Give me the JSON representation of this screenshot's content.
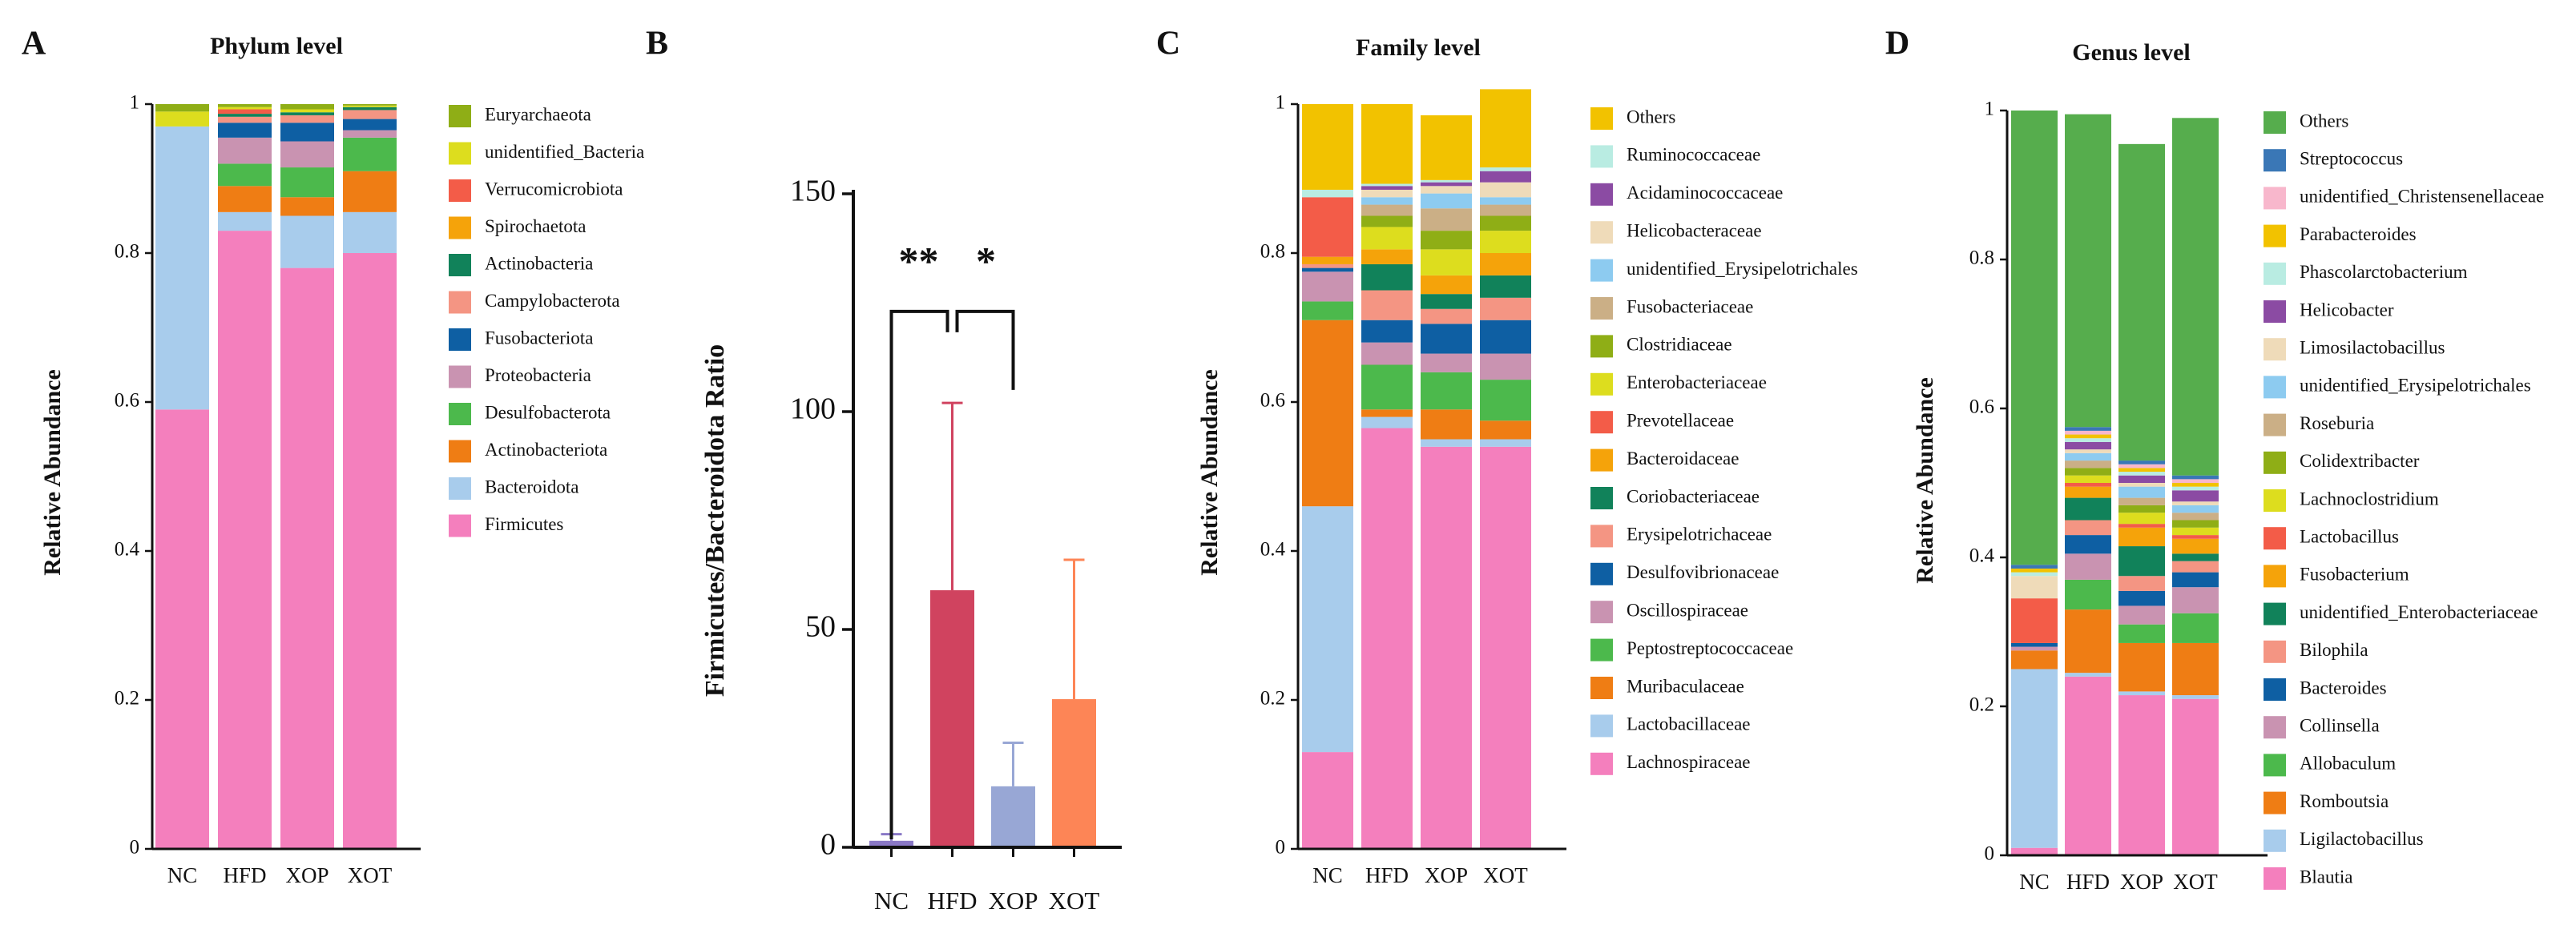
{
  "chart_data": [
    {
      "panel_label": "A",
      "type": "bar",
      "stacked": true,
      "title": "Phylum level",
      "xlabel": "",
      "ylabel": "Relative Abundance",
      "ylim": [
        0,
        1
      ],
      "yticks": [
        "0",
        "0.2",
        "0.4",
        "0.6",
        "0.8",
        "1"
      ],
      "categories": [
        "NC",
        "HFD",
        "XOP",
        "XOT"
      ],
      "legend": [
        "Euryarchaeota",
        "unidentified_Bacteria",
        "Verrucomicrobiota",
        "Spirochaetota",
        "Actinobacteria",
        "Campylobacterota",
        "Fusobacteriota",
        "Proteobacteria",
        "Desulfobacterota",
        "Actinobacteriota",
        "Bacteroidota",
        "Firmicutes"
      ],
      "series": [
        {
          "name": "Firmicutes",
          "color": "#f47fbd",
          "values": [
            0.59,
            0.83,
            0.78,
            0.8
          ]
        },
        {
          "name": "Bacteroidota",
          "color": "#a8ccec",
          "values": [
            0.38,
            0.025,
            0.07,
            0.055
          ]
        },
        {
          "name": "Actinobacteriota",
          "color": "#ef7d14",
          "values": [
            0.0,
            0.035,
            0.025,
            0.055
          ]
        },
        {
          "name": "Desulfobacterota",
          "color": "#4cb94c",
          "values": [
            0.0,
            0.03,
            0.04,
            0.045
          ]
        },
        {
          "name": "Proteobacteria",
          "color": "#c993b1",
          "values": [
            0.0,
            0.035,
            0.035,
            0.01
          ]
        },
        {
          "name": "Fusobacteriota",
          "color": "#0e5fa3",
          "values": [
            0.0,
            0.02,
            0.025,
            0.015
          ]
        },
        {
          "name": "Campylobacterota",
          "color": "#f49583",
          "values": [
            0.0,
            0.008,
            0.01,
            0.012
          ]
        },
        {
          "name": "Actinobacteria",
          "color": "#11825a",
          "values": [
            0.0,
            0.004,
            0.004,
            0.004
          ]
        },
        {
          "name": "Spirochaetota",
          "color": "#f5a30a",
          "values": [
            0.0,
            0.0,
            0.0,
            0.0
          ]
        },
        {
          "name": "Verrucomicrobiota",
          "color": "#f35c48",
          "values": [
            0.0,
            0.006,
            0.0,
            0.0
          ]
        },
        {
          "name": "unidentified_Bacteria",
          "color": "#dddd1e",
          "values": [
            0.02,
            0.003,
            0.004,
            0.002
          ]
        },
        {
          "name": "Euryarchaeota",
          "color": "#8fae16",
          "values": [
            0.01,
            0.004,
            0.007,
            0.002
          ]
        }
      ]
    },
    {
      "panel_label": "B",
      "type": "bar",
      "title": "",
      "xlabel": "",
      "ylabel": "Firmicutes/Bacteroidota Ratio",
      "ylim": [
        0,
        150
      ],
      "yticks": [
        "0",
        "50",
        "100",
        "150"
      ],
      "categories": [
        "NC",
        "HFD",
        "XOP",
        "XOT"
      ],
      "values": [
        1.5,
        59,
        14,
        34
      ],
      "error": [
        1.5,
        43,
        10,
        32
      ],
      "colors": [
        "#8a78c6",
        "#d0435f",
        "#98a7d5",
        "#fd8556"
      ],
      "annotations": [
        "**",
        "*"
      ]
    },
    {
      "panel_label": "C",
      "type": "bar",
      "stacked": true,
      "title": "Family level",
      "xlabel": "",
      "ylabel": "Relative Abundance",
      "ylim": [
        0,
        1
      ],
      "yticks": [
        "0",
        "0.2",
        "0.4",
        "0.6",
        "0.8",
        "1"
      ],
      "categories": [
        "NC",
        "HFD",
        "XOP",
        "XOT"
      ],
      "legend": [
        "Others",
        "Ruminococcaceae",
        "Acidaminococcaceae",
        "Helicobacteraceae",
        "unidentified_Erysipelotrichales",
        "Fusobacteriaceae",
        "Clostridiaceae",
        "Enterobacteriaceae",
        "Prevotellaceae",
        "Bacteroidaceae",
        "Coriobacteriaceae",
        "Erysipelotrichaceae",
        "Desulfovibrionaceae",
        "Oscillospiraceae",
        "Peptostreptococcaceae",
        "Muribaculaceae",
        "Lactobacillaceae",
        "Lachnospiraceae"
      ],
      "series": [
        {
          "name": "Lachnospiraceae",
          "color": "#f47fbd",
          "values": [
            0.13,
            0.565,
            0.54,
            0.54
          ]
        },
        {
          "name": "Lactobacillaceae",
          "color": "#a8ccec",
          "values": [
            0.33,
            0.015,
            0.01,
            0.01
          ]
        },
        {
          "name": "Muribaculaceae",
          "color": "#ef7d14",
          "values": [
            0.25,
            0.01,
            0.04,
            0.025
          ]
        },
        {
          "name": "Peptostreptococcaceae",
          "color": "#4cb94c",
          "values": [
            0.025,
            0.06,
            0.05,
            0.055
          ]
        },
        {
          "name": "Oscillospiraceae",
          "color": "#c993b1",
          "values": [
            0.04,
            0.03,
            0.025,
            0.035
          ]
        },
        {
          "name": "Desulfovibrionaceae",
          "color": "#0e5fa3",
          "values": [
            0.005,
            0.03,
            0.04,
            0.045
          ]
        },
        {
          "name": "Erysipelotrichaceae",
          "color": "#f49583",
          "values": [
            0.005,
            0.04,
            0.02,
            0.03
          ]
        },
        {
          "name": "Coriobacteriaceae",
          "color": "#11825a",
          "values": [
            0.0,
            0.035,
            0.02,
            0.03
          ]
        },
        {
          "name": "Bacteroidaceae",
          "color": "#f5a30a",
          "values": [
            0.01,
            0.02,
            0.025,
            0.03
          ]
        },
        {
          "name": "Prevotellaceae",
          "color": "#f35c48",
          "values": [
            0.08,
            0.0,
            0.0,
            0.0
          ]
        },
        {
          "name": "Enterobacteriaceae",
          "color": "#dddd1e",
          "values": [
            0.0,
            0.03,
            0.035,
            0.03
          ]
        },
        {
          "name": "Clostridiaceae",
          "color": "#8fae16",
          "values": [
            0.0,
            0.015,
            0.025,
            0.02
          ]
        },
        {
          "name": "Fusobacteriaceae",
          "color": "#cbaf86",
          "values": [
            0.0,
            0.015,
            0.03,
            0.015
          ]
        },
        {
          "name": "unidentified_Erysipelotrichales",
          "color": "#8dcbf0",
          "values": [
            0.0,
            0.01,
            0.02,
            0.01
          ]
        },
        {
          "name": "Helicobacteraceae",
          "color": "#efdbb9",
          "values": [
            0.0,
            0.01,
            0.01,
            0.02
          ]
        },
        {
          "name": "Acidaminococcaceae",
          "color": "#8b4ba3",
          "values": [
            0.0,
            0.005,
            0.005,
            0.015
          ]
        },
        {
          "name": "Ruminococcaceae",
          "color": "#b9ece2",
          "values": [
            0.01,
            0.003,
            0.003,
            0.005
          ]
        },
        {
          "name": "Others",
          "color": "#f2c200",
          "values": [
            0.115,
            0.107,
            0.087,
            0.105
          ]
        }
      ]
    },
    {
      "panel_label": "D",
      "type": "bar",
      "stacked": true,
      "title": "Genus level",
      "xlabel": "",
      "ylabel": "Relative Abundance",
      "ylim": [
        0,
        1
      ],
      "yticks": [
        "0",
        "0.2",
        "0.4",
        "0.6",
        "0.8",
        "1"
      ],
      "categories": [
        "NC",
        "HFD",
        "XOP",
        "XOT"
      ],
      "legend": [
        "Others",
        "Streptococcus",
        "unidentified_Christensenellaceae",
        "Parabacteroides",
        "Phascolarctobacterium",
        "Helicobacter",
        "Limosilactobacillus",
        "unidentified_Erysipelotrichales",
        "Roseburia",
        "Colidextribacter",
        "Lachnoclostridium",
        "Lactobacillus",
        "Fusobacterium",
        "unidentified_Enterobacteriaceae",
        "Bilophila",
        "Bacteroides",
        "Collinsella",
        "Allobaculum",
        "Romboutsia",
        "Ligilactobacillus",
        "Blautia"
      ],
      "series": [
        {
          "name": "Blautia",
          "color": "#f47fbd",
          "values": [
            0.01,
            0.24,
            0.215,
            0.21
          ]
        },
        {
          "name": "Ligilactobacillus",
          "color": "#a8ccec",
          "values": [
            0.24,
            0.005,
            0.005,
            0.005
          ]
        },
        {
          "name": "Romboutsia",
          "color": "#ef7d14",
          "values": [
            0.025,
            0.085,
            0.065,
            0.07
          ]
        },
        {
          "name": "Allobaculum",
          "color": "#4cb94c",
          "values": [
            0.0,
            0.04,
            0.025,
            0.04
          ]
        },
        {
          "name": "Collinsella",
          "color": "#c993b1",
          "values": [
            0.005,
            0.035,
            0.025,
            0.035
          ]
        },
        {
          "name": "Bacteroides",
          "color": "#0e5fa3",
          "values": [
            0.005,
            0.025,
            0.02,
            0.02
          ]
        },
        {
          "name": "Bilophila",
          "color": "#f49583",
          "values": [
            0.0,
            0.02,
            0.02,
            0.015
          ]
        },
        {
          "name": "unidentified_Enterobacteriaceae",
          "color": "#11825a",
          "values": [
            0.0,
            0.03,
            0.04,
            0.01
          ]
        },
        {
          "name": "Fusobacterium",
          "color": "#f5a30a",
          "values": [
            0.0,
            0.015,
            0.025,
            0.02
          ]
        },
        {
          "name": "Lactobacillus",
          "color": "#f35c48",
          "values": [
            0.06,
            0.005,
            0.005,
            0.005
          ]
        },
        {
          "name": "Lachnoclostridium",
          "color": "#dddd1e",
          "values": [
            0.0,
            0.01,
            0.015,
            0.01
          ]
        },
        {
          "name": "Colidextribacter",
          "color": "#8fae16",
          "values": [
            0.0,
            0.01,
            0.01,
            0.01
          ]
        },
        {
          "name": "Roseburia",
          "color": "#cbaf86",
          "values": [
            0.0,
            0.01,
            0.01,
            0.01
          ]
        },
        {
          "name": "unidentified_Erysipelotrichales",
          "color": "#8dcbf0",
          "values": [
            0.0,
            0.01,
            0.015,
            0.01
          ]
        },
        {
          "name": "Limosilactobacillus",
          "color": "#efdbb9",
          "values": [
            0.03,
            0.005,
            0.005,
            0.005
          ]
        },
        {
          "name": "Helicobacter",
          "color": "#8b4ba3",
          "values": [
            0.0,
            0.01,
            0.01,
            0.015
          ]
        },
        {
          "name": "Phascolarctobacterium",
          "color": "#b9ece2",
          "values": [
            0.005,
            0.005,
            0.005,
            0.005
          ]
        },
        {
          "name": "Parabacteroides",
          "color": "#f2c200",
          "values": [
            0.005,
            0.005,
            0.005,
            0.005
          ]
        },
        {
          "name": "unidentified_Christensenellaceae",
          "color": "#f8b7cc",
          "values": [
            0.0,
            0.005,
            0.005,
            0.005
          ]
        },
        {
          "name": "Streptococcus",
          "color": "#3a77b6",
          "values": [
            0.005,
            0.005,
            0.005,
            0.005
          ]
        },
        {
          "name": "Others",
          "color": "#56ad4d",
          "values": [
            0.61,
            0.42,
            0.425,
            0.48
          ]
        }
      ]
    }
  ]
}
